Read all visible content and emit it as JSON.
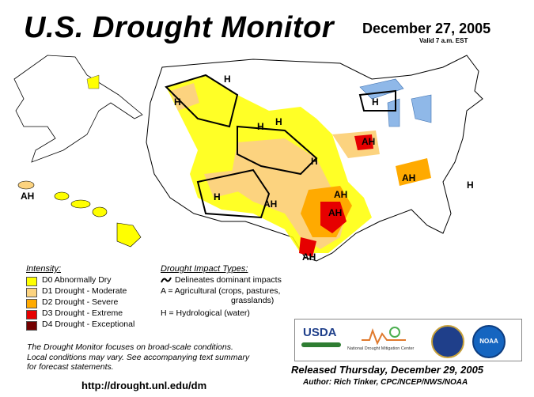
{
  "header": {
    "title": "U.S. Drought Monitor",
    "date": "December 27, 2005",
    "valid": "Valid 7 a.m. EST"
  },
  "intensity_legend": {
    "heading": "Intensity:",
    "items": [
      {
        "label": "D0 Abnormally Dry",
        "color": "#ffff00"
      },
      {
        "label": "D1 Drought - Moderate",
        "color": "#fcd37f"
      },
      {
        "label": "D2 Drought - Severe",
        "color": "#ffaa00"
      },
      {
        "label": "D3 Drought - Extreme",
        "color": "#e60000"
      },
      {
        "label": "D4 Drought - Exceptional",
        "color": "#730000"
      }
    ]
  },
  "impact_legend": {
    "heading": "Drought Impact Types:",
    "line_label": "Delineates dominant impacts",
    "agri_line1": "A = Agricultural (crops, pastures,",
    "agri_line2": "grasslands)",
    "hydro": "H = Hydrological (water)"
  },
  "map_labels": {
    "west_h": "H",
    "mt_h": "H",
    "ne_h": "H",
    "mi_h": "H",
    "co_h": "H",
    "sd_h": "H",
    "nm_h": "H",
    "ah_tx": "AH",
    "ah_ok": "AH",
    "ah_ar": "AH",
    "ah_il": "AH",
    "ah_ky": "AH",
    "ah_gulf": "AH",
    "ah_hawaii": "AH",
    "h_east": "H"
  },
  "note": {
    "line1": "The Drought Monitor focuses on broad-scale conditions.",
    "line2": "Local conditions may vary.  See accompanying text summary",
    "line3": "for forecast statements."
  },
  "url": "http://drought.unl.edu/dm",
  "released": "Released Thursday, December 29, 2005",
  "author": "Author:  Rich Tinker, CPC/NCEP/NWS/NOAA",
  "logos": {
    "usda": "USDA",
    "ndmc_line": "National Drought Mitigation Center",
    "noaa": "NOAA"
  }
}
